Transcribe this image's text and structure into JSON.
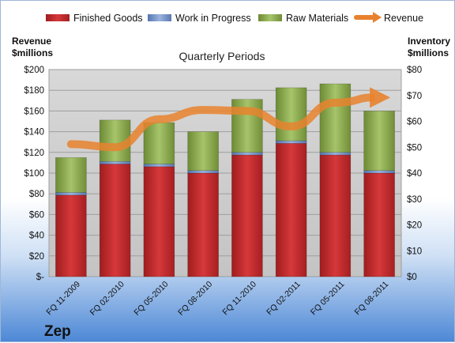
{
  "company": "Zep",
  "chart_data": {
    "type": "bar",
    "stacked": true,
    "title": "Quarterly Periods",
    "y_left_label": [
      "Revenue",
      "$millions"
    ],
    "y_right_label": [
      "Inventory",
      "$millions"
    ],
    "categories": [
      "FQ 11-2009",
      "FQ 02-2010",
      "FQ 05-2010",
      "FQ 08-2010",
      "FQ 11-2010",
      "FQ 02-2011",
      "FQ 05-2011",
      "FQ 08-2011"
    ],
    "series": [
      {
        "name": "Finished Goods",
        "axis": "right",
        "color": "#c0282a",
        "values": [
          31.5,
          43.5,
          42.5,
          40,
          47,
          51.5,
          47,
          40
        ]
      },
      {
        "name": "Work in Progress",
        "axis": "right",
        "color": "#6f8fc7",
        "values": [
          1,
          1,
          1,
          1,
          1,
          1,
          1,
          1
        ]
      },
      {
        "name": "Raw Materials",
        "axis": "right",
        "color": "#8aa84a",
        "values": [
          13.5,
          16,
          16,
          15,
          20.5,
          20.5,
          26.5,
          23
        ]
      },
      {
        "name": "Revenue",
        "type": "line",
        "axis": "left",
        "color": "#e8822e",
        "values": [
          128,
          125,
          152,
          161,
          160,
          145,
          168,
          173
        ]
      }
    ],
    "y_left": {
      "range": [
        0,
        200
      ],
      "ticks": [
        "$-",
        "$20",
        "$40",
        "$60",
        "$80",
        "$100",
        "$120",
        "$140",
        "$160",
        "$180",
        "$200"
      ]
    },
    "y_right": {
      "range": [
        0,
        80
      ],
      "ticks": [
        "$0",
        "$10",
        "$20",
        "$30",
        "$40",
        "$50",
        "$60",
        "$70",
        "$80"
      ]
    },
    "legend_position": "top",
    "grid": true,
    "plot_background": "#cfcfcf"
  }
}
